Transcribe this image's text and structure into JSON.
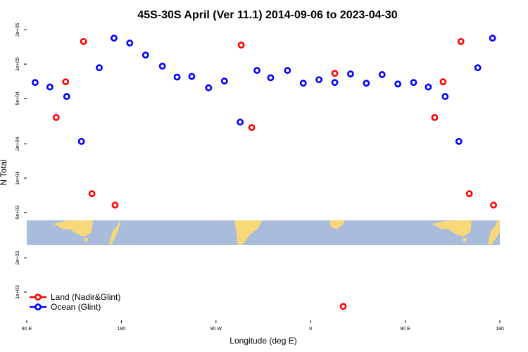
{
  "chart_data": {
    "type": "scatter",
    "title": "45S-30S April (Ver 11.1)   2014-09-06 to 2023-04-30",
    "x_label": "Longitude (deg E)",
    "y_label": "N Total",
    "log_y": true,
    "legend": "bottom-left",
    "xlim": [
      90,
      540
    ],
    "xticks": [
      {
        "value": 90,
        "label": "90 E"
      },
      {
        "value": 180,
        "label": "180"
      },
      {
        "value": 270,
        "label": "90 W"
      },
      {
        "value": 360,
        "label": "0"
      },
      {
        "value": 450,
        "label": "90 E"
      },
      {
        "value": 540,
        "label": "180"
      }
    ],
    "ylim": [
      566,
      222000
    ],
    "yticks": [
      {
        "value": 1000,
        "label": "1e+03"
      },
      {
        "value": 2000,
        "label": "2e+03"
      },
      {
        "value": 5000,
        "label": "5e+03"
      },
      {
        "value": 10000,
        "label": "1e+04"
      },
      {
        "value": 20000,
        "label": "2e+04"
      },
      {
        "value": 50000,
        "label": "5e+04"
      },
      {
        "value": 100000,
        "label": "1e+05"
      },
      {
        "value": 200000,
        "label": "2e+05"
      }
    ],
    "series": [
      {
        "name": "Land (Nadir&Glint)",
        "color": "#ff0000",
        "x": [
          118,
          127,
          144,
          152,
          174,
          294,
          304,
          383,
          391,
          478,
          486,
          503,
          511,
          534
        ],
        "values": [
          34000,
          70000,
          158000,
          7300,
          5800,
          147000,
          27800,
          83000,
          750,
          34000,
          70000,
          158000,
          7300,
          5800
        ]
      },
      {
        "name": "Ocean (Glint)",
        "color": "#0000ff",
        "x": [
          98,
          112,
          128,
          142,
          159,
          173,
          188,
          203,
          219,
          233,
          247,
          263,
          278,
          293,
          309,
          322,
          338,
          353,
          368,
          383,
          398,
          413,
          428,
          443,
          458,
          472,
          488,
          501,
          519,
          533
        ],
        "values": [
          69000,
          63000,
          52000,
          21000,
          93000,
          169000,
          153000,
          120000,
          96000,
          77000,
          78000,
          62000,
          71000,
          31000,
          88000,
          76000,
          88000,
          68000,
          73000,
          69000,
          82000,
          68000,
          81000,
          67000,
          69000,
          63000,
          52000,
          21000,
          93000,
          169000
        ]
      }
    ]
  }
}
